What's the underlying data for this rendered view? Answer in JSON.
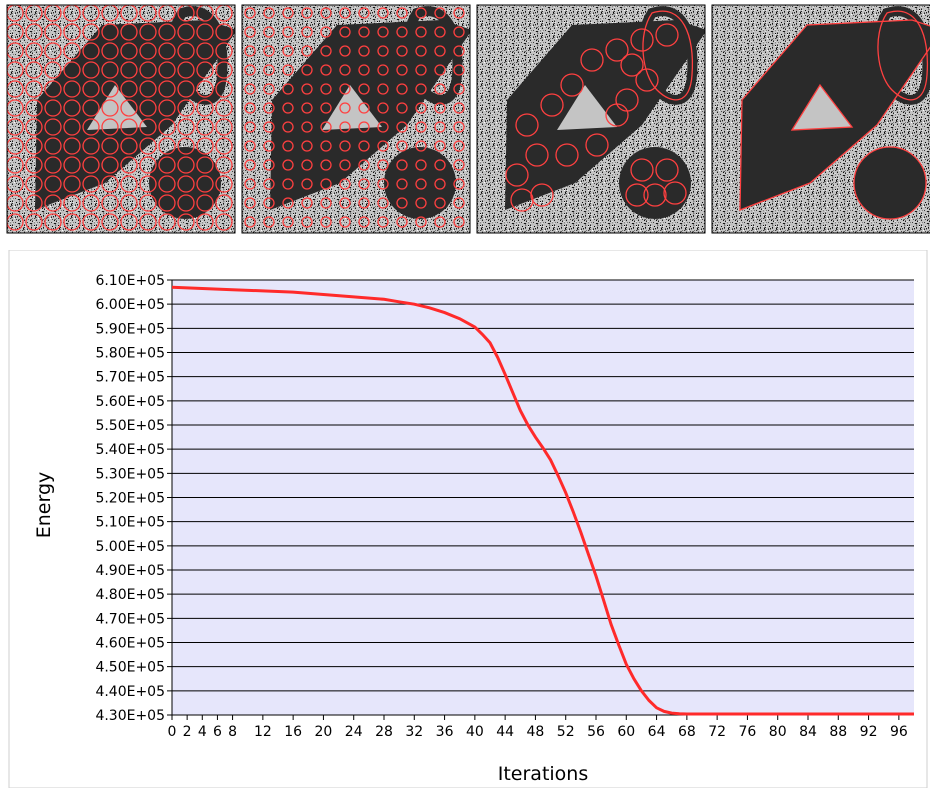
{
  "colors": {
    "plot_background": "#e6e6fb",
    "curve": "#ff2a2a",
    "gridline": "#000000",
    "noise_light": "#c4c4c4",
    "shape_dark": "#2a2a2a",
    "contour": "#ff4040"
  },
  "panels": [
    {
      "stage": "initial",
      "circle_pattern": "dense-grid"
    },
    {
      "stage": "early",
      "circle_pattern": "sparse-grid"
    },
    {
      "stage": "middle",
      "circle_pattern": "inside-shapes"
    },
    {
      "stage": "converged",
      "circle_pattern": "boundary-only"
    }
  ],
  "chart_data": {
    "type": "line",
    "xlabel": "Iterations",
    "ylabel": "Energy",
    "ylim": [
      430000,
      610000
    ],
    "y_tick_step": 10000,
    "x_ticks": [
      0,
      2,
      4,
      6,
      8,
      12,
      16,
      20,
      24,
      28,
      32,
      36,
      40,
      44,
      48,
      52,
      56,
      60,
      64,
      68,
      72,
      76,
      80,
      84,
      88,
      92,
      96
    ],
    "xlim": [
      0,
      98
    ],
    "grid": "horizontal",
    "legend": "none",
    "series": [
      {
        "x": [
          0,
          4,
          8,
          12,
          16,
          20,
          24,
          28,
          30,
          32,
          34,
          36,
          38,
          40,
          41,
          42,
          43,
          44,
          45,
          46,
          47,
          48,
          49,
          50,
          51,
          52,
          53,
          54,
          55,
          56,
          57,
          58,
          59,
          60,
          61,
          62,
          63,
          64,
          65,
          66,
          67,
          68,
          70,
          75,
          80,
          85,
          90,
          95,
          98
        ],
        "y": [
          607000,
          606500,
          606000,
          605500,
          605000,
          604000,
          603000,
          602000,
          601000,
          600000,
          598500,
          596500,
          594000,
          590500,
          587500,
          584000,
          578000,
          571000,
          563500,
          556000,
          550000,
          545000,
          540500,
          535500,
          529000,
          522000,
          514000,
          505500,
          496500,
          487500,
          477500,
          467500,
          459000,
          451000,
          445000,
          440000,
          436000,
          433000,
          431500,
          430800,
          430500,
          430400,
          430400,
          430400,
          430400,
          430400,
          430400,
          430400,
          430400
        ]
      }
    ]
  }
}
